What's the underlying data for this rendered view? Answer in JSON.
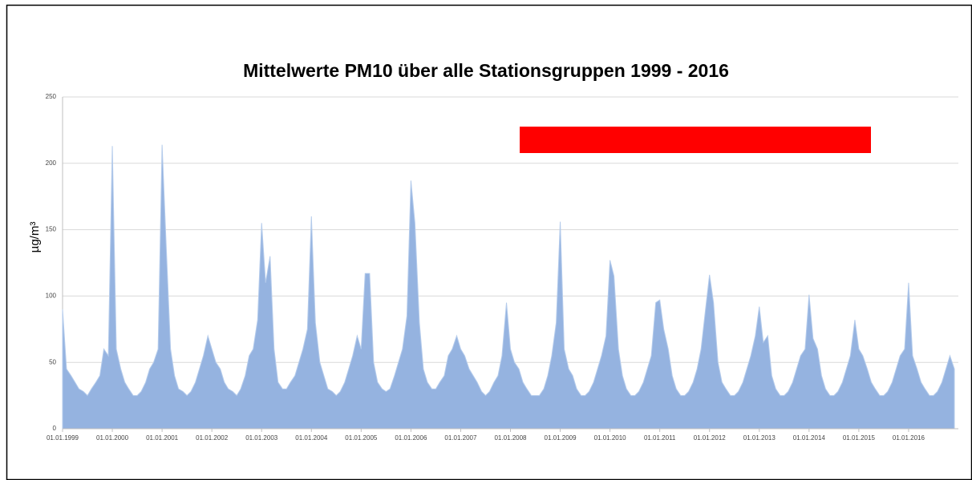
{
  "chart_data": {
    "type": "area",
    "title": "Mittelwerte PM10 über alle Stationsgruppen 1999 - 2016",
    "ylabel": "µg/m³",
    "color": "#95b3e0",
    "grid": true,
    "ylim": [
      0,
      250
    ],
    "yticks": [
      0,
      50,
      100,
      150,
      200,
      250
    ],
    "xlim": [
      1999,
      2017
    ],
    "xticks": [
      {
        "value": 1999,
        "label": "01.01.1999"
      },
      {
        "value": 2000,
        "label": "01.01.2000"
      },
      {
        "value": 2001,
        "label": "01.01.2001"
      },
      {
        "value": 2002,
        "label": "01.01.2002"
      },
      {
        "value": 2003,
        "label": "01.01.2003"
      },
      {
        "value": 2004,
        "label": "01.01.2004"
      },
      {
        "value": 2005,
        "label": "01.01.2005"
      },
      {
        "value": 2006,
        "label": "01.01.2006"
      },
      {
        "value": 2007,
        "label": "01.01.2007"
      },
      {
        "value": 2008,
        "label": "01.01.2008"
      },
      {
        "value": 2009,
        "label": "01.01.2009"
      },
      {
        "value": 2010,
        "label": "01.01.2010"
      },
      {
        "value": 2011,
        "label": "01.01.2011"
      },
      {
        "value": 2012,
        "label": "01.01.2012"
      },
      {
        "value": 2013,
        "label": "01.01.2013"
      },
      {
        "value": 2014,
        "label": "01.01.2014"
      },
      {
        "value": 2015,
        "label": "01.01.2015"
      },
      {
        "value": 2016,
        "label": "01.01.2016"
      }
    ],
    "x": [
      1999,
      1999.08,
      1999.17,
      1999.25,
      1999.33,
      1999.42,
      1999.5,
      1999.58,
      1999.67,
      1999.75,
      1999.83,
      1999.92,
      2000,
      2000.08,
      2000.17,
      2000.25,
      2000.33,
      2000.42,
      2000.5,
      2000.58,
      2000.67,
      2000.75,
      2000.83,
      2000.92,
      2001,
      2001.08,
      2001.17,
      2001.25,
      2001.33,
      2001.42,
      2001.5,
      2001.58,
      2001.67,
      2001.75,
      2001.83,
      2001.92,
      2002,
      2002.08,
      2002.17,
      2002.25,
      2002.33,
      2002.42,
      2002.5,
      2002.58,
      2002.67,
      2002.75,
      2002.83,
      2002.92,
      2003,
      2003.08,
      2003.17,
      2003.25,
      2003.33,
      2003.42,
      2003.5,
      2003.58,
      2003.67,
      2003.75,
      2003.83,
      2003.92,
      2004,
      2004.08,
      2004.17,
      2004.25,
      2004.33,
      2004.42,
      2004.5,
      2004.58,
      2004.67,
      2004.75,
      2004.83,
      2004.92,
      2005,
      2005.08,
      2005.17,
      2005.25,
      2005.33,
      2005.42,
      2005.5,
      2005.58,
      2005.67,
      2005.75,
      2005.83,
      2005.92,
      2006,
      2006.08,
      2006.17,
      2006.25,
      2006.33,
      2006.42,
      2006.5,
      2006.58,
      2006.67,
      2006.75,
      2006.83,
      2006.92,
      2007,
      2007.08,
      2007.17,
      2007.25,
      2007.33,
      2007.42,
      2007.5,
      2007.58,
      2007.67,
      2007.75,
      2007.83,
      2007.92,
      2008,
      2008.08,
      2008.17,
      2008.25,
      2008.33,
      2008.42,
      2008.5,
      2008.58,
      2008.67,
      2008.75,
      2008.83,
      2008.92,
      2009,
      2009.08,
      2009.17,
      2009.25,
      2009.33,
      2009.42,
      2009.5,
      2009.58,
      2009.67,
      2009.75,
      2009.83,
      2009.92,
      2010,
      2010.08,
      2010.17,
      2010.25,
      2010.33,
      2010.42,
      2010.5,
      2010.58,
      2010.67,
      2010.75,
      2010.83,
      2010.92,
      2011,
      2011.08,
      2011.17,
      2011.25,
      2011.33,
      2011.42,
      2011.5,
      2011.58,
      2011.67,
      2011.75,
      2011.83,
      2011.92,
      2012,
      2012.08,
      2012.17,
      2012.25,
      2012.33,
      2012.42,
      2012.5,
      2012.58,
      2012.67,
      2012.75,
      2012.83,
      2012.92,
      2013,
      2013.08,
      2013.17,
      2013.25,
      2013.33,
      2013.42,
      2013.5,
      2013.58,
      2013.67,
      2013.75,
      2013.83,
      2013.92,
      2014,
      2014.08,
      2014.17,
      2014.25,
      2014.33,
      2014.42,
      2014.5,
      2014.58,
      2014.67,
      2014.75,
      2014.83,
      2014.92,
      2015,
      2015.08,
      2015.17,
      2015.25,
      2015.33,
      2015.42,
      2015.5,
      2015.58,
      2015.67,
      2015.75,
      2015.83,
      2015.92,
      2016,
      2016.08,
      2016.17,
      2016.25,
      2016.33,
      2016.42,
      2016.5,
      2016.58,
      2016.67,
      2016.75,
      2016.83,
      2016.92
    ],
    "values": [
      90,
      45,
      40,
      35,
      30,
      28,
      25,
      30,
      35,
      40,
      60,
      55,
      213,
      60,
      45,
      35,
      30,
      25,
      25,
      28,
      35,
      45,
      50,
      60,
      214,
      140,
      60,
      40,
      30,
      28,
      25,
      28,
      35,
      45,
      55,
      70,
      60,
      50,
      45,
      35,
      30,
      28,
      25,
      30,
      40,
      55,
      60,
      82,
      155,
      110,
      130,
      60,
      35,
      30,
      30,
      35,
      40,
      50,
      60,
      75,
      160,
      80,
      50,
      40,
      30,
      28,
      25,
      28,
      35,
      45,
      55,
      70,
      60,
      117,
      117,
      50,
      35,
      30,
      28,
      30,
      40,
      50,
      60,
      85,
      187,
      155,
      80,
      45,
      35,
      30,
      30,
      35,
      40,
      55,
      60,
      70,
      60,
      55,
      45,
      40,
      35,
      28,
      25,
      28,
      35,
      40,
      55,
      95,
      60,
      50,
      45,
      35,
      30,
      25,
      25,
      25,
      30,
      40,
      55,
      80,
      156,
      60,
      45,
      40,
      30,
      25,
      25,
      28,
      35,
      45,
      55,
      70,
      127,
      115,
      60,
      40,
      30,
      25,
      25,
      28,
      35,
      45,
      55,
      95,
      97,
      75,
      60,
      40,
      30,
      25,
      25,
      28,
      35,
      45,
      60,
      90,
      116,
      95,
      50,
      35,
      30,
      25,
      25,
      28,
      35,
      45,
      55,
      70,
      92,
      65,
      70,
      40,
      30,
      25,
      25,
      28,
      35,
      45,
      55,
      60,
      101,
      68,
      60,
      40,
      30,
      25,
      25,
      28,
      35,
      45,
      55,
      82,
      60,
      55,
      45,
      35,
      30,
      25,
      25,
      28,
      35,
      45,
      55,
      60,
      110,
      55,
      45,
      35,
      30,
      25,
      25,
      28,
      35,
      45,
      55,
      45
    ]
  }
}
